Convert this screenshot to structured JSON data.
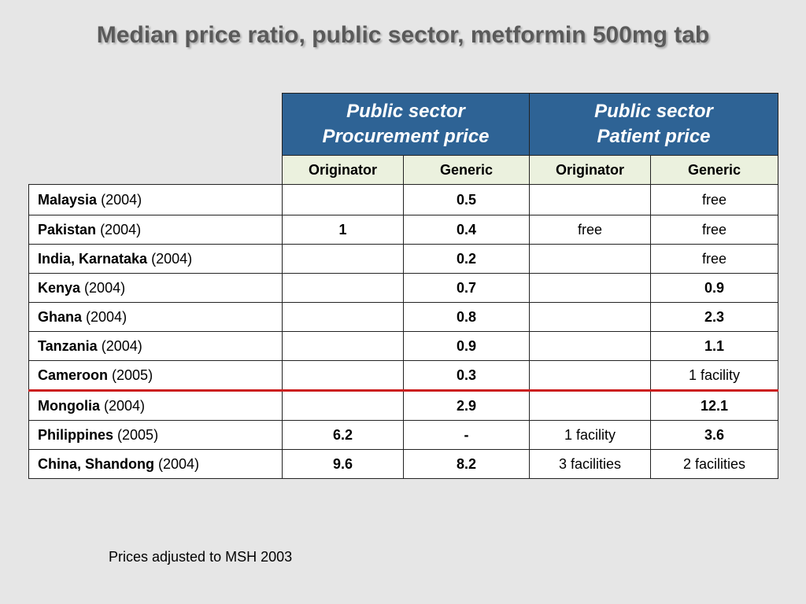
{
  "title": "Median price ratio, public sector, metformin 500mg tab",
  "columns": {
    "group1": [
      "Public sector",
      "Procurement price"
    ],
    "group2": [
      "Public sector",
      "Patient price"
    ],
    "sub": [
      "Originator",
      "Generic",
      "Originator",
      "Generic"
    ]
  },
  "rows": [
    {
      "country": "Malaysia",
      "year": "(2004)",
      "values": [
        {
          "t": "",
          "b": false
        },
        {
          "t": "0.5",
          "b": true
        },
        {
          "t": "",
          "b": false
        },
        {
          "t": "free",
          "b": false
        }
      ]
    },
    {
      "country": "Pakistan",
      "year": "(2004)",
      "values": [
        {
          "t": "1",
          "b": true
        },
        {
          "t": "0.4",
          "b": true
        },
        {
          "t": "free",
          "b": false
        },
        {
          "t": "free",
          "b": false
        }
      ]
    },
    {
      "country": "India, Karnataka",
      "year": "(2004)",
      "values": [
        {
          "t": "",
          "b": false
        },
        {
          "t": "0.2",
          "b": true
        },
        {
          "t": "",
          "b": false
        },
        {
          "t": "free",
          "b": false
        }
      ]
    },
    {
      "country": "Kenya",
      "year": "(2004)",
      "values": [
        {
          "t": "",
          "b": false
        },
        {
          "t": "0.7",
          "b": true
        },
        {
          "t": "",
          "b": false
        },
        {
          "t": "0.9",
          "b": true
        }
      ]
    },
    {
      "country": "Ghana",
      "year": "(2004)",
      "values": [
        {
          "t": "",
          "b": false
        },
        {
          "t": "0.8",
          "b": true
        },
        {
          "t": "",
          "b": false
        },
        {
          "t": "2.3",
          "b": true
        }
      ]
    },
    {
      "country": "Tanzania",
      "year": "(2004)",
      "values": [
        {
          "t": "",
          "b": false
        },
        {
          "t": "0.9",
          "b": true
        },
        {
          "t": "",
          "b": false
        },
        {
          "t": "1.1",
          "b": true
        }
      ]
    },
    {
      "country": "Cameroon",
      "year": "(2005)",
      "values": [
        {
          "t": "",
          "b": false
        },
        {
          "t": "0.3",
          "b": true
        },
        {
          "t": "",
          "b": false
        },
        {
          "t": "1 facility",
          "b": false
        }
      ]
    },
    {
      "country": "Mongolia",
      "year": "(2004)",
      "values": [
        {
          "t": "",
          "b": false
        },
        {
          "t": "2.9",
          "b": true
        },
        {
          "t": "",
          "b": false
        },
        {
          "t": "12.1",
          "b": true
        }
      ]
    },
    {
      "country": "Philippines",
      "year": "(2005)",
      "values": [
        {
          "t": "6.2",
          "b": true
        },
        {
          "t": "-",
          "b": true
        },
        {
          "t": "1 facility",
          "b": false
        },
        {
          "t": "3.6",
          "b": true
        }
      ]
    },
    {
      "country": "China, Shandong",
      "year": "(2004)",
      "values": [
        {
          "t": "9.6",
          "b": true
        },
        {
          "t": "8.2",
          "b": true
        },
        {
          "t": "3 facilities",
          "b": false
        },
        {
          "t": "2 facilities",
          "b": false
        }
      ]
    }
  ],
  "divider_after_row": 6,
  "divider_color": "#cc1f1f",
  "header_color": "#2e6395",
  "subheader_color": "#ebf1de",
  "footnote": "Prices adjusted to MSH 2003"
}
